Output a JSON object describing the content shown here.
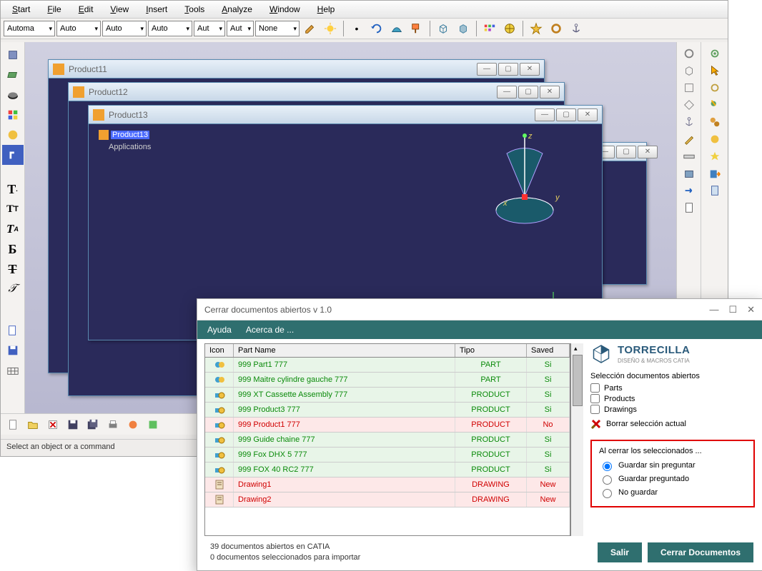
{
  "menu": {
    "start": "Start",
    "file": "File",
    "edit": "Edit",
    "view": "View",
    "insert": "Insert",
    "tools": "Tools",
    "analyze": "Analyze",
    "window": "Window",
    "help": "Help"
  },
  "combos": {
    "c1": "Automa",
    "c2": "Auto",
    "c3": "Auto",
    "c4": "Auto",
    "c5": "Aut",
    "c6": "Aut",
    "c7": "None"
  },
  "mdi": {
    "p11": "Product11",
    "p12": "Product12",
    "p13": "Product13",
    "tree_root": "Product13",
    "tree_apps": "Applications",
    "axis_x": "x",
    "axis_y": "y",
    "axis_z": "z"
  },
  "status": "Select an object or a command",
  "dialog": {
    "title": "Cerrar documentos abiertos v 1.0",
    "menu_ayuda": "Ayuda",
    "menu_acerca": "Acerca de ...",
    "col_icon": "Icon",
    "col_name": "Part Name",
    "col_tipo": "Tipo",
    "col_saved": "Saved",
    "rows": [
      {
        "name": "999 Part1 777",
        "tipo": "PART",
        "saved": "Si",
        "cls": "green",
        "icon": "part"
      },
      {
        "name": "999 Maitre cylindre gauche 777",
        "tipo": "PART",
        "saved": "Si",
        "cls": "green",
        "icon": "part"
      },
      {
        "name": "999 XT Cassette Assembly 777",
        "tipo": "PRODUCT",
        "saved": "Si",
        "cls": "green",
        "icon": "product"
      },
      {
        "name": "999 Product3 777",
        "tipo": "PRODUCT",
        "saved": "Si",
        "cls": "green",
        "icon": "product"
      },
      {
        "name": "999 Product1 777",
        "tipo": "PRODUCT",
        "saved": "No",
        "cls": "red",
        "icon": "product"
      },
      {
        "name": "999 Guide chaine 777",
        "tipo": "PRODUCT",
        "saved": "Si",
        "cls": "green",
        "icon": "product"
      },
      {
        "name": "999 Fox DHX 5 777",
        "tipo": "PRODUCT",
        "saved": "Si",
        "cls": "green",
        "icon": "product"
      },
      {
        "name": "999 FOX 40 RC2 777",
        "tipo": "PRODUCT",
        "saved": "Si",
        "cls": "green",
        "icon": "product"
      },
      {
        "name": "Drawing1",
        "tipo": "DRAWING",
        "saved": "New",
        "cls": "red",
        "icon": "drawing"
      },
      {
        "name": "Drawing2",
        "tipo": "DRAWING",
        "saved": "New",
        "cls": "red",
        "icon": "drawing"
      }
    ],
    "logo_name": "TORRECILLA",
    "logo_sub": "DISEÑO & MACROS CATIA",
    "sel_label": "Selección documentos abiertos",
    "chk_parts": "Parts",
    "chk_products": "Products",
    "chk_drawings": "Drawings",
    "borrar": "Borrar selección actual",
    "fieldset_legend": "Al cerrar los seleccionados ...",
    "r1": "Guardar sin preguntar",
    "r2": "Guardar preguntado",
    "r3": "No guardar",
    "stat1": "39 documentos abiertos en CATIA",
    "stat2": "0 documentos seleccionados para importar",
    "btn_salir": "Salir",
    "btn_cerrar": "Cerrar Documentos"
  },
  "colors": {
    "teal": "#2f6f6f",
    "mdi_bg": "#2a2a5a",
    "green_txt": "#0a8a0a",
    "red_txt": "#d00000",
    "green_bg": "#e8f5e8",
    "red_bg": "#fde8e8",
    "logo": "#2a5a7a",
    "redbox": "#e00000"
  }
}
